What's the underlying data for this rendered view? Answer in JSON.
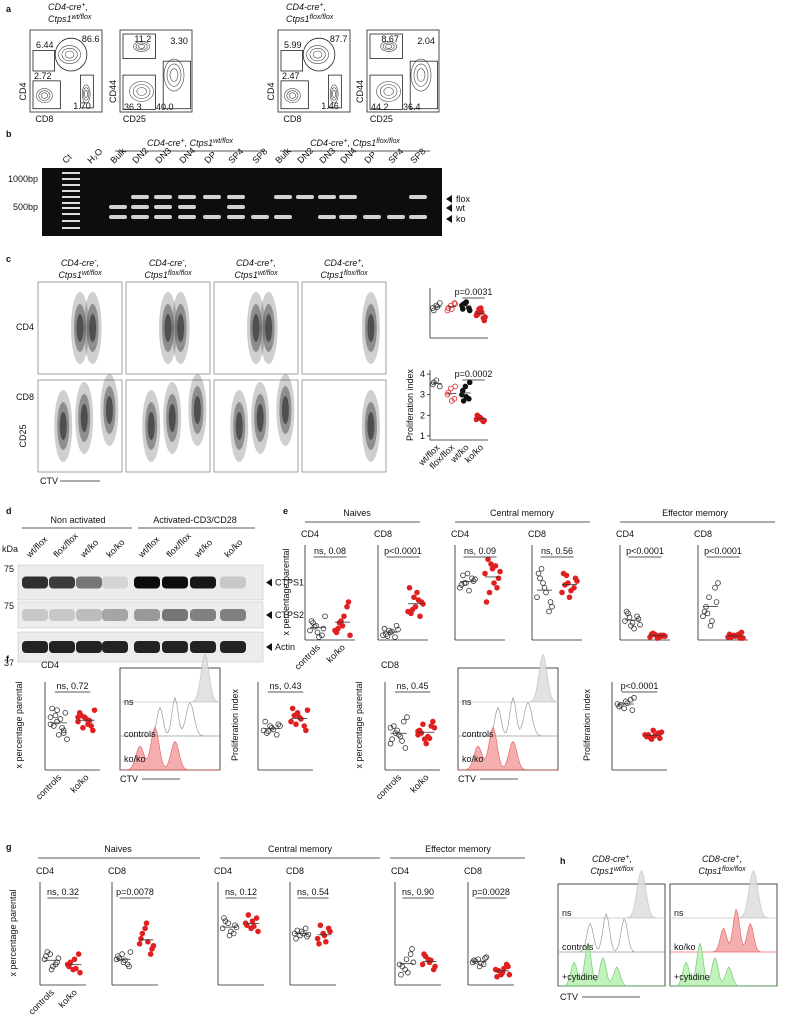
{
  "a": {
    "label": "a",
    "groups": [
      {
        "genotype": [
          [
            {
              "t": "CD4-cre"
            },
            {
              "t": "+",
              "sup": true
            },
            {
              "t": ","
            }
          ],
          [
            {
              "t": "Ctps1"
            },
            {
              "t": "wt/flox",
              "sup": true
            }
          ]
        ],
        "plots": [
          {
            "x": "CD8",
            "y": "CD4",
            "gates": [
              "6.44",
              "86.6",
              "2.72",
              "1.70"
            ]
          },
          {
            "x": "CD25",
            "y": "CD44",
            "gates": [
              "11.2",
              "3.30",
              "36.3",
              "40.0"
            ]
          }
        ]
      },
      {
        "genotype": [
          [
            {
              "t": "CD4-cre"
            },
            {
              "t": "+",
              "sup": true
            },
            {
              "t": ","
            }
          ],
          [
            {
              "t": "Ctps1"
            },
            {
              "t": "flox/flox",
              "sup": true
            }
          ]
        ],
        "plots": [
          {
            "x": "CD8",
            "y": "CD4",
            "gates": [
              "5.99",
              "87.7",
              "2.47",
              "1.46"
            ]
          },
          {
            "x": "CD25",
            "y": "CD44",
            "gates": [
              "8.67",
              "2.04",
              "44.2",
              "36.4"
            ]
          }
        ]
      }
    ]
  },
  "b": {
    "label": "b",
    "headers": [
      [
        [
          {
            "t": "CD4-cre"
          },
          {
            "t": "+",
            "sup": true
          },
          {
            "t": ", Ctps1"
          },
          {
            "t": "wt/flox",
            "sup": true
          }
        ]
      ],
      [
        [
          {
            "t": "CD4-cre"
          },
          {
            "t": "+",
            "sup": true
          },
          {
            "t": ", Ctps1"
          },
          {
            "t": "flox/flox",
            "sup": true
          }
        ]
      ]
    ],
    "lanes": [
      "Ct",
      "H₂O",
      "Bulk",
      "DN2",
      "DN3",
      "DN4",
      "DP",
      "SP4",
      "SP8",
      "Bulk",
      "DN2",
      "DN3",
      "DN4",
      "DP",
      "SP4",
      "SP8"
    ],
    "ladder": [
      "1000bp",
      "500bp"
    ],
    "bands": [
      "flox",
      "wt",
      "ko"
    ]
  },
  "c": {
    "label": "c",
    "headers": [
      [
        [
          {
            "t": "CD4-cre"
          },
          {
            "t": "-",
            "sup": true
          },
          {
            "t": ","
          }
        ],
        [
          {
            "t": "Ctps1"
          },
          {
            "t": "wt/flox",
            "sup": true
          }
        ]
      ],
      [
        [
          {
            "t": "CD4-cre"
          },
          {
            "t": "-",
            "sup": true
          },
          {
            "t": ","
          }
        ],
        [
          {
            "t": "Ctps1"
          },
          {
            "t": "flox/flox",
            "sup": true
          }
        ]
      ],
      [
        [
          {
            "t": "CD4-cre"
          },
          {
            "t": "+",
            "sup": true
          },
          {
            "t": ","
          }
        ],
        [
          {
            "t": "Ctps1"
          },
          {
            "t": "wt/flox",
            "sup": true
          }
        ]
      ],
      [
        [
          {
            "t": "CD4-cre"
          },
          {
            "t": "+",
            "sup": true
          },
          {
            "t": ","
          }
        ],
        [
          {
            "t": "Ctps1"
          },
          {
            "t": "flox/flox",
            "sup": true
          }
        ]
      ]
    ],
    "rows": [
      "CD4",
      "CD8"
    ],
    "ylabel": "CD25",
    "xlabel": "CTV",
    "categories": [
      "wt/flox",
      "flox/flox",
      "wt/ko",
      "ko/ko"
    ],
    "markers": [
      {
        "fill": "none",
        "stroke": "#333"
      },
      {
        "fill": "none",
        "stroke": "#e02020"
      },
      {
        "fill": "#111",
        "stroke": "#111"
      },
      {
        "fill": "#e02020",
        "stroke": "#e02020"
      }
    ],
    "plots": [
      {
        "stat": "p=0.0031",
        "ylim": [
          0,
          100
        ],
        "groups": [
          [
            60,
            65,
            70,
            55,
            62
          ],
          [
            55,
            65,
            70,
            60,
            58,
            68
          ],
          [
            65,
            70,
            60,
            58,
            72,
            55,
            68
          ],
          [
            45,
            55,
            40,
            50,
            60,
            35,
            48,
            52,
            42,
            58
          ]
        ]
      },
      {
        "stat": "p=0.0002",
        "ylabel": "Proliferation index",
        "ylim": [
          0.8,
          4.2
        ],
        "yticks": [
          1,
          2,
          3,
          4
        ],
        "groups": [
          [
            3.5,
            3.7,
            3.4,
            3.6
          ],
          [
            3.0,
            3.3,
            2.8,
            3.1,
            2.7,
            3.4
          ],
          [
            3.0,
            3.4,
            2.8,
            3.2,
            2.9,
            3.6,
            2.7
          ],
          [
            1.8,
            1.9,
            1.7,
            2.0,
            1.85,
            1.75,
            1.95,
            1.8
          ]
        ]
      }
    ]
  },
  "d": {
    "label": "d",
    "kda": "kDa",
    "markers": [
      "75",
      "75",
      "37"
    ],
    "headers": [
      "Non activated",
      "Activated-CD3/CD28"
    ],
    "lanes": [
      "wt/flox",
      "flox/flox",
      "wt/ko",
      "ko/ko",
      "wt/flox",
      "flox/flox",
      "wt/ko",
      "ko/ko"
    ],
    "proteins": [
      "CTPS1",
      "CTPS2",
      "Actin"
    ]
  },
  "e": {
    "label": "e",
    "headers": [
      "Naives",
      "Central memory",
      "Effector memory"
    ],
    "ylabel": "x percentage parental",
    "categories": [
      "controls",
      "ko/ko"
    ],
    "ylim": [
      0,
      100
    ],
    "markers": [
      {
        "fill": "none",
        "stroke": "#333"
      },
      {
        "fill": "#e02020",
        "stroke": "#e02020"
      }
    ],
    "plots": [
      {
        "title": "CD4",
        "stat": "ns, 0.08",
        "groups": [
          [
            10,
            15,
            5,
            20,
            8,
            12,
            18,
            3,
            25,
            14
          ],
          [
            10,
            20,
            35,
            8,
            15,
            40,
            12,
            25,
            5,
            18
          ]
        ]
      },
      {
        "title": "CD8",
        "stat": "p<0.0001",
        "groups": [
          [
            5,
            10,
            3,
            12,
            8,
            15,
            6,
            9,
            11,
            4
          ],
          [
            30,
            45,
            25,
            55,
            35,
            40,
            28,
            50,
            38,
            32,
            42
          ]
        ]
      },
      {
        "title": "CD4",
        "stat": "ns, 0.09",
        "groups": [
          [
            55,
            60,
            65,
            58,
            70,
            62,
            68,
            52,
            64,
            60
          ],
          [
            70,
            80,
            55,
            40,
            75,
            65,
            85,
            60,
            72,
            50,
            78
          ]
        ]
      },
      {
        "title": "CD8",
        "stat": "ns, 0.56",
        "groups": [
          [
            45,
            60,
            30,
            70,
            55,
            40,
            65,
            50,
            35,
            75
          ],
          [
            50,
            60,
            55,
            70,
            45,
            65,
            58,
            52,
            62,
            68
          ]
        ]
      },
      {
        "title": "CD4",
        "stat": "p<0.0001",
        "groups": [
          [
            20,
            15,
            25,
            30,
            18,
            22,
            28,
            12,
            16,
            24
          ],
          [
            3,
            5,
            4,
            6,
            2,
            5,
            7,
            3,
            4,
            6,
            5
          ]
        ]
      },
      {
        "title": "CD8",
        "stat": "p<0.0001",
        "groups": [
          [
            25,
            45,
            55,
            30,
            15,
            40,
            35,
            20,
            60,
            28
          ],
          [
            3,
            5,
            2,
            6,
            4,
            8,
            3,
            5,
            2,
            4,
            6
          ]
        ]
      }
    ]
  },
  "f": {
    "label": "f",
    "ylabel_pct": "x percentage parental",
    "ylabel_prolif": "Proliferation index",
    "categories": [
      "controls",
      "ko/ko"
    ],
    "xlabel": "CTV",
    "ylim": [
      0,
      100
    ],
    "markers": [
      {
        "fill": "none",
        "stroke": "#333"
      },
      {
        "fill": "#e02020",
        "stroke": "#e02020"
      }
    ],
    "sections": [
      {
        "title": "CD4",
        "hist_labels": [
          "ns",
          "controls",
          "ko/ko"
        ],
        "pct": {
          "stat": "ns, 0.72",
          "groups": [
            [
              60,
              55,
              45,
              70,
              40,
              65,
              50,
              58,
              35,
              62,
              48,
              52,
              68,
              42
            ],
            [
              55,
              60,
              50,
              65,
              58,
              45,
              62,
              52,
              68,
              48,
              56,
              60
            ]
          ]
        },
        "prolif": {
          "stat": "ns, 0.43",
          "groups": [
            [
              45,
              50,
              40,
              55,
              48,
              52,
              42,
              46,
              50,
              44
            ],
            [
              55,
              65,
              50,
              70,
              60,
              45,
              62,
              58,
              68,
              52
            ]
          ]
        }
      },
      {
        "title": "CD8",
        "hist_labels": [
          "ns",
          "controls",
          "ko/ko"
        ],
        "pct": {
          "stat": "ns, 0.45",
          "groups": [
            [
              30,
              45,
              55,
              35,
              40,
              25,
              50,
              38,
              60,
              42,
              33,
              48
            ],
            [
              40,
              35,
              50,
              45,
              30,
              55,
              42,
              38,
              48,
              52,
              36,
              44
            ]
          ]
        },
        "prolif": {
          "stat": "p<0.0001",
          "groups": [
            [
              75,
              70,
              80,
              72,
              78,
              68,
              74,
              76,
              82
            ],
            [
              40,
              35,
              42,
              38,
              45,
              36,
              40,
              39,
              43,
              37
            ]
          ]
        }
      }
    ]
  },
  "g": {
    "label": "g",
    "headers": [
      "Naives",
      "Central memory",
      "Effector memory"
    ],
    "ylabel": "x percentage parental",
    "categories": [
      "controls",
      "ko/ko"
    ],
    "ylim": [
      0,
      100
    ],
    "markers": [
      {
        "fill": "none",
        "stroke": "#333"
      },
      {
        "fill": "#e02020",
        "stroke": "#e02020"
      }
    ],
    "plots": [
      {
        "title": "CD4",
        "stat": "ns, 0.32",
        "groups": [
          [
            25,
            30,
            20,
            28,
            15,
            22,
            32,
            18,
            26
          ],
          [
            20,
            15,
            30,
            18,
            25,
            12,
            22,
            16
          ]
        ]
      },
      {
        "title": "CD8",
        "stat": "p=0.0078",
        "groups": [
          [
            25,
            30,
            20,
            28,
            22,
            18,
            26,
            24,
            32
          ],
          [
            40,
            55,
            30,
            45,
            60,
            35,
            50,
            42,
            38
          ]
        ]
      },
      {
        "title": "CD4",
        "stat": "ns, 0.12",
        "groups": [
          [
            55,
            60,
            50,
            65,
            48,
            58,
            62,
            52,
            56
          ],
          [
            60,
            55,
            65,
            58,
            62,
            52,
            68,
            57
          ]
        ]
      },
      {
        "title": "CD8",
        "stat": "ns, 0.54",
        "groups": [
          [
            50,
            48,
            55,
            45,
            52,
            47,
            53,
            50,
            49
          ],
          [
            45,
            50,
            55,
            40,
            48,
            52,
            58,
            42
          ]
        ]
      },
      {
        "title": "CD4",
        "stat": "ns, 0.90",
        "groups": [
          [
            20,
            15,
            30,
            10,
            25,
            35,
            18,
            12,
            22
          ],
          [
            20,
            25,
            15,
            30,
            22,
            18,
            28,
            24
          ]
        ]
      },
      {
        "title": "CD8",
        "stat": "p=0.0028",
        "groups": [
          [
            22,
            25,
            20,
            24,
            18,
            26,
            23,
            21,
            27
          ],
          [
            15,
            10,
            20,
            8,
            12,
            18,
            14,
            16,
            10
          ]
        ]
      }
    ]
  },
  "h": {
    "label": "h",
    "xlabel": "CTV",
    "groups": [
      {
        "genotype": [
          [
            {
              "t": "CD8-cre"
            },
            {
              "t": "+",
              "sup": true
            },
            {
              "t": ","
            }
          ],
          [
            {
              "t": "Ctps1"
            },
            {
              "t": "wt/flox",
              "sup": true
            }
          ]
        ],
        "labels": [
          "ns",
          "controls",
          "+cytidine"
        ]
      },
      {
        "genotype": [
          [
            {
              "t": "CD8-cre"
            },
            {
              "t": "+",
              "sup": true
            },
            {
              "t": ","
            }
          ],
          [
            {
              "t": "Ctps1"
            },
            {
              "t": "flox/flox",
              "sup": true
            }
          ]
        ],
        "labels": [
          "ns",
          "ko/ko",
          "+cytidine"
        ]
      }
    ]
  }
}
